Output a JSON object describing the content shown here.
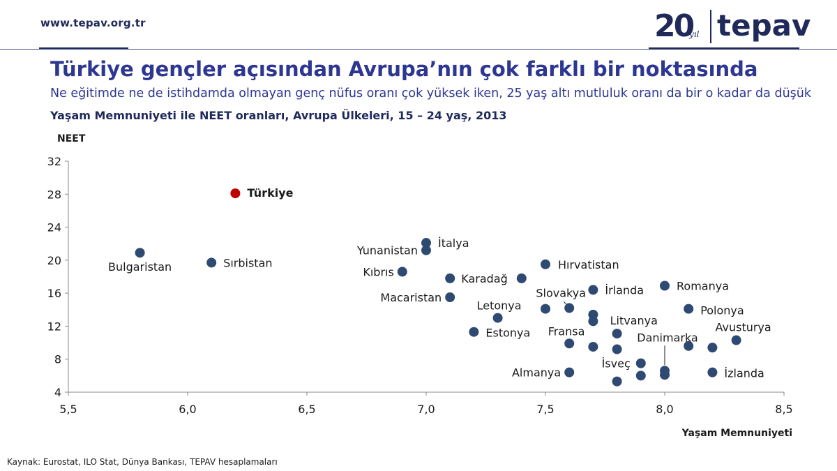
{
  "header": {
    "site_url": "www.tepav.org.tr",
    "logo": {
      "number": "20",
      "suffix": "yıl",
      "name": "tepav"
    }
  },
  "title": "Türkiye gençler açısından Avrupa’nın çok farklı bir noktasında",
  "subtitle": "Ne eğitimde ne de istihdamda olmayan genç nüfus oranı çok yüksek iken, 25 yaş altı mutluluk oranı da bir o kadar da düşük",
  "source": "Kaynak: Eurostat, ILO Stat, Dünya Bankası, TEPAV hesaplamaları",
  "colors": {
    "title": "#2d3691",
    "point": "#2e4a72",
    "highlight": "#c00000",
    "axis": "#888888"
  },
  "chart_data": {
    "type": "scatter",
    "title": "Yaşam Memnuniyeti ile NEET oranları, Avrupa Ülkeleri, 15 – 24 yaş, 2013",
    "xlabel": "Yaşam Memnuniyeti",
    "ylabel": "NEET",
    "xlim": [
      5.5,
      8.5
    ],
    "ylim": [
      4,
      32
    ],
    "xticks": [
      "5,5",
      "6,0",
      "6,5",
      "7,0",
      "7,5",
      "8,0",
      "8,5"
    ],
    "yticks": [
      "4",
      "8",
      "12",
      "16",
      "20",
      "24",
      "28",
      "32"
    ],
    "grid": false,
    "points": [
      {
        "x": 6.2,
        "y": 28.1,
        "label": "Türkiye",
        "highlight": true
      },
      {
        "x": 5.8,
        "y": 20.9,
        "label": "Bulgaristan"
      },
      {
        "x": 6.1,
        "y": 19.7,
        "label": "Sırbistan"
      },
      {
        "x": 7.0,
        "y": 22.1,
        "label": "İtalya"
      },
      {
        "x": 7.0,
        "y": 21.2,
        "label": "Yunanistan"
      },
      {
        "x": 6.9,
        "y": 18.6,
        "label": "Kıbrıs"
      },
      {
        "x": 7.1,
        "y": 17.8,
        "label": ""
      },
      {
        "x": 7.4,
        "y": 17.8,
        "label": "Karadağ"
      },
      {
        "x": 7.1,
        "y": 15.5,
        "label": "Macaristan"
      },
      {
        "x": 7.3,
        "y": 13.0,
        "label": "Letonya"
      },
      {
        "x": 7.2,
        "y": 11.3,
        "label": "Estonya"
      },
      {
        "x": 7.5,
        "y": 19.5,
        "label": "Hırvatistan"
      },
      {
        "x": 7.5,
        "y": 14.1,
        "label": ""
      },
      {
        "x": 7.6,
        "y": 14.2,
        "label": "Slovakya"
      },
      {
        "x": 7.7,
        "y": 16.4,
        "label": "İrlanda"
      },
      {
        "x": 7.7,
        "y": 13.4,
        "label": ""
      },
      {
        "x": 7.7,
        "y": 12.6,
        "label": "Fransa"
      },
      {
        "x": 7.8,
        "y": 11.1,
        "label": "Litvanya"
      },
      {
        "x": 7.6,
        "y": 9.9,
        "label": ""
      },
      {
        "x": 7.7,
        "y": 9.5,
        "label": ""
      },
      {
        "x": 7.8,
        "y": 9.2,
        "label": ""
      },
      {
        "x": 7.9,
        "y": 7.5,
        "label": "İsveç"
      },
      {
        "x": 7.6,
        "y": 6.4,
        "label": "Almanya"
      },
      {
        "x": 7.8,
        "y": 5.3,
        "label": ""
      },
      {
        "x": 7.9,
        "y": 6.0,
        "label": ""
      },
      {
        "x": 8.0,
        "y": 6.6,
        "label": "Danimarka"
      },
      {
        "x": 8.0,
        "y": 6.1,
        "label": ""
      },
      {
        "x": 8.0,
        "y": 16.9,
        "label": "Romanya"
      },
      {
        "x": 8.1,
        "y": 14.1,
        "label": "Polonya"
      },
      {
        "x": 8.1,
        "y": 9.6,
        "label": ""
      },
      {
        "x": 8.2,
        "y": 9.4,
        "label": ""
      },
      {
        "x": 8.3,
        "y": 10.3,
        "label": "Avusturya"
      },
      {
        "x": 8.2,
        "y": 6.4,
        "label": "İzlanda"
      }
    ]
  }
}
